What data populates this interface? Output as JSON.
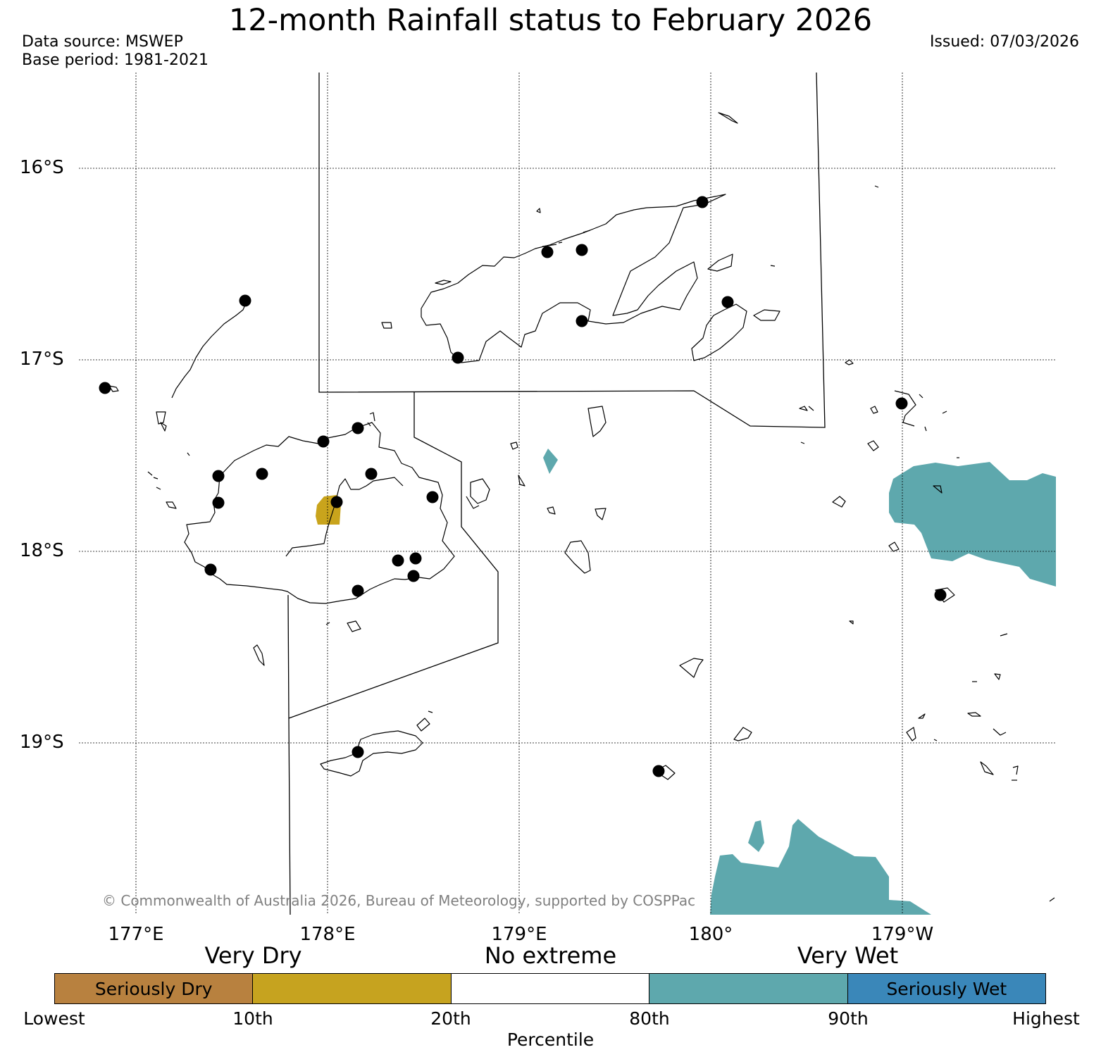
{
  "header": {
    "title": "12-month Rainfall status to February 2026",
    "data_source": "Data source: MSWEP",
    "base_period": "Base period: 1981-2021",
    "issued": "Issued: 07/03/2026"
  },
  "map": {
    "lat_labels": [
      "16°S",
      "17°S",
      "18°S",
      "19°S"
    ],
    "lon_labels": [
      "177°E",
      "178°E",
      "179°E",
      "180°",
      "179°W"
    ],
    "copyright": "© Commonwealth of Australia 2026, Bureau of Meteorology, supported by COSPPac",
    "colors": {
      "coast": "#000000",
      "grid": "#000000",
      "very_dry": "#c9a41c",
      "very_wet": "#5ea8ad"
    }
  },
  "legend": {
    "category_headings": [
      "Very Dry",
      "No extreme",
      "Very Wet"
    ],
    "segments": [
      {
        "label": "Seriously Dry",
        "color": "#b8813f"
      },
      {
        "label": "",
        "color": "#c6a31f"
      },
      {
        "label": "",
        "color": "#ffffff"
      },
      {
        "label": "",
        "color": "#5ea8ad"
      },
      {
        "label": "Seriously Wet",
        "color": "#3a87b9"
      }
    ],
    "ticks": [
      "Lowest",
      "10th",
      "20th",
      "80th",
      "90th",
      "Highest"
    ],
    "axis_label": "Percentile"
  }
}
